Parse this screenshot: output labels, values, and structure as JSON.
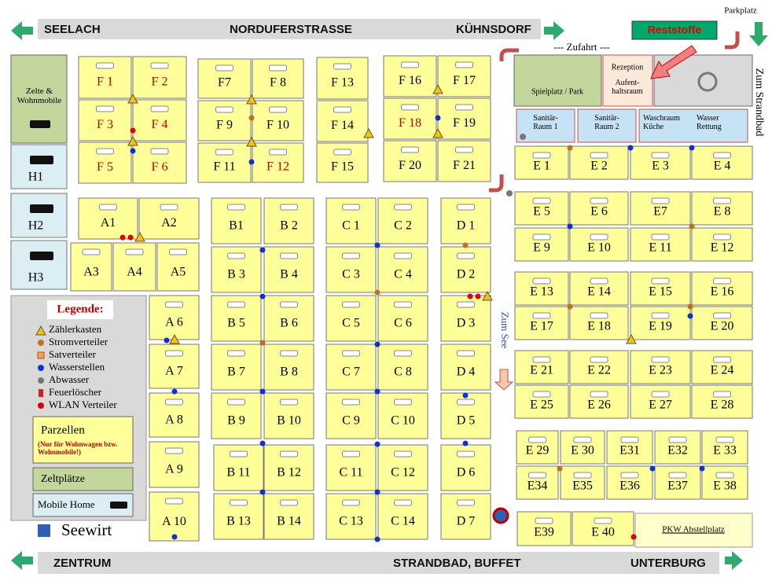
{
  "roads": {
    "top": [
      "SEELACH",
      "NORDUFERSTRASSE",
      "KÜHNSDORF"
    ],
    "bottom": [
      "ZENTRUM",
      "STRANDBAD, BUFFET",
      "UNTERBURG"
    ]
  },
  "signs": {
    "reststoffe": "Reststoffe",
    "parkplatz": "Parkplatz",
    "zufahrt": "--- Zufahrt ---",
    "zum_strandbad": "Zum Strandbad",
    "zum_see": "Zum See",
    "seewirt": "Seewirt",
    "pkw": "PKW Abstellplatz"
  },
  "facilities": {
    "spielplatz": "Spielplatz / Park",
    "rezeption": "Rezeption",
    "aufenthaltsraum": "Aufent-haltsraum",
    "sanitaer1": "Sanitär-Raum 1",
    "sanitaer2": "Sanitär-Raum 2",
    "waschraum": "Waschraum Küche",
    "wasser": "Wasser Rettung",
    "zelte": "Zelte & Wohnmobile"
  },
  "legend": {
    "title": "Legende:",
    "items": [
      "Zählerkasten",
      "Stromverteiler",
      "Satverteiler",
      "Wasserstellen",
      "Abwasser",
      "Feuerlöscher",
      "WLAN Verteiler"
    ],
    "parzellen": "Parzellen",
    "parzellen_note": "(Nur für Wohnwagen bzw. Wohnmobile!)",
    "zeltplaetze": "Zeltplätze",
    "mobile_home": "Mobile Home"
  },
  "parcels": [
    {
      "label": "F 1",
      "color": "#c00000"
    },
    {
      "label": "F 2",
      "color": "#c00000"
    },
    {
      "label": "F 3",
      "color": "#c00000"
    },
    {
      "label": "F 4",
      "color": "#c00000"
    },
    {
      "label": "F 5",
      "color": "#c00000"
    },
    {
      "label": "F 6",
      "color": "#c00000"
    },
    {
      "label": "F7"
    },
    {
      "label": "F 8"
    },
    {
      "label": "F 9"
    },
    {
      "label": "F 10"
    },
    {
      "label": "F 11"
    },
    {
      "label": "F 12",
      "color": "#c00000"
    },
    {
      "label": "F 13"
    },
    {
      "label": "F 14"
    },
    {
      "label": "F 15"
    },
    {
      "label": "F 16"
    },
    {
      "label": "F 17"
    },
    {
      "label": "F 18",
      "color": "#c00000"
    },
    {
      "label": "F 19"
    },
    {
      "label": "F 20"
    },
    {
      "label": "F 21"
    },
    {
      "label": "A1"
    },
    {
      "label": "A2"
    },
    {
      "label": "A3"
    },
    {
      "label": "A4"
    },
    {
      "label": "A5"
    },
    {
      "label": "A 6"
    },
    {
      "label": "A 7"
    },
    {
      "label": "A 8"
    },
    {
      "label": "A 9"
    },
    {
      "label": "A 10"
    },
    {
      "label": "B1"
    },
    {
      "label": "B 2"
    },
    {
      "label": "B 3"
    },
    {
      "label": "B 4"
    },
    {
      "label": "B 5"
    },
    {
      "label": "B 6"
    },
    {
      "label": "B 7"
    },
    {
      "label": "B 8"
    },
    {
      "label": "B 9"
    },
    {
      "label": "B 10"
    },
    {
      "label": "B 11"
    },
    {
      "label": "B 12"
    },
    {
      "label": "B 13"
    },
    {
      "label": "B 14"
    },
    {
      "label": "C 1"
    },
    {
      "label": "C 2"
    },
    {
      "label": "C 3"
    },
    {
      "label": "C 4"
    },
    {
      "label": "C 5"
    },
    {
      "label": "C 6"
    },
    {
      "label": "C 7"
    },
    {
      "label": "C 8"
    },
    {
      "label": "C 9"
    },
    {
      "label": "C 10"
    },
    {
      "label": "C 11"
    },
    {
      "label": "C 12"
    },
    {
      "label": "C 13"
    },
    {
      "label": "C 14"
    },
    {
      "label": "D 1"
    },
    {
      "label": "D 2"
    },
    {
      "label": "D 3"
    },
    {
      "label": "D 4"
    },
    {
      "label": "D 5"
    },
    {
      "label": "D 6"
    },
    {
      "label": "D 7"
    },
    {
      "label": "E 1"
    },
    {
      "label": "E 2"
    },
    {
      "label": "E 3"
    },
    {
      "label": "E 4"
    },
    {
      "label": "E 5"
    },
    {
      "label": "E 6"
    },
    {
      "label": "E7"
    },
    {
      "label": "E 8"
    },
    {
      "label": "E 9"
    },
    {
      "label": "E 10"
    },
    {
      "label": "E 11"
    },
    {
      "label": "E 12"
    },
    {
      "label": "E 13"
    },
    {
      "label": "E 14"
    },
    {
      "label": "E 15"
    },
    {
      "label": "E 16"
    },
    {
      "label": "E 17"
    },
    {
      "label": "E 18"
    },
    {
      "label": "E 19"
    },
    {
      "label": "E 20"
    },
    {
      "label": "E 21"
    },
    {
      "label": "E 22"
    },
    {
      "label": "E 23"
    },
    {
      "label": "E 24"
    },
    {
      "label": "E 25"
    },
    {
      "label": "E 26"
    },
    {
      "label": "E 27"
    },
    {
      "label": "E 28"
    },
    {
      "label": "E 29"
    },
    {
      "label": "E 30"
    },
    {
      "label": "E31"
    },
    {
      "label": "E32"
    },
    {
      "label": "E 33"
    },
    {
      "label": "E34"
    },
    {
      "label": "E35"
    },
    {
      "label": "E36"
    },
    {
      "label": "E37"
    },
    {
      "label": "E 38"
    },
    {
      "label": "E39"
    },
    {
      "label": "E 40"
    },
    {
      "label": "H1"
    },
    {
      "label": "H2"
    },
    {
      "label": "H3"
    }
  ]
}
